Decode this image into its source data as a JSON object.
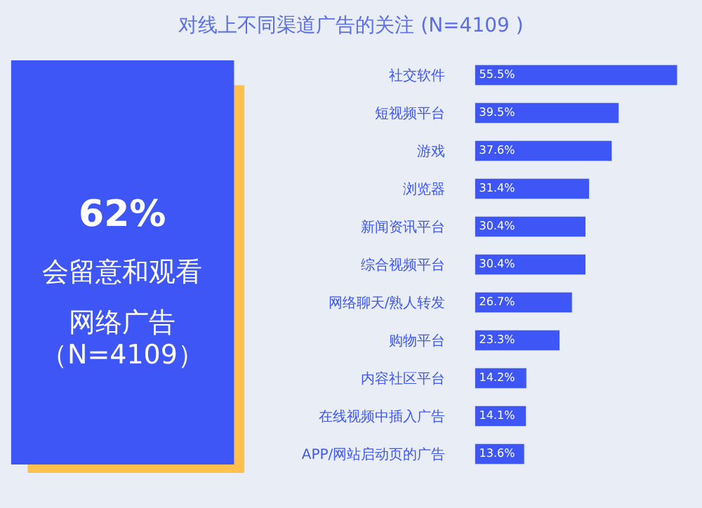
{
  "chart_data": [
    {
      "type": "other",
      "color": "#3d56f5",
      "annotations": [
        "62%",
        "会留意和观看",
        "网络广告",
        "（N=4109）"
      ]
    },
    {
      "type": "bar",
      "orientation": "horizontal",
      "title": "对线上不同渠道广告的关注 (N=4109 )",
      "categories": [
        "社交软件",
        "短视频平台",
        "游戏",
        "浏览器",
        "新闻资讯平台",
        "综合视频平台",
        "网络聊天/熟人转发",
        "购物平台",
        "内容社区平台",
        "在线视频中插入广告",
        "APP/网站启动页的广告"
      ],
      "values": [
        55.5,
        39.5,
        37.6,
        31.4,
        30.4,
        30.4,
        26.7,
        23.3,
        14.2,
        14.1,
        13.6
      ],
      "value_labels": [
        "55.5%",
        "39.5%",
        "37.6%",
        "31.4%",
        "30.4%",
        "30.4%",
        "26.7%",
        "23.3%",
        "14.2%",
        "14.1%",
        "13.6%"
      ],
      "color": "#3d56f5",
      "tick_labels": "y",
      "grid": false,
      "legend": false
    }
  ]
}
